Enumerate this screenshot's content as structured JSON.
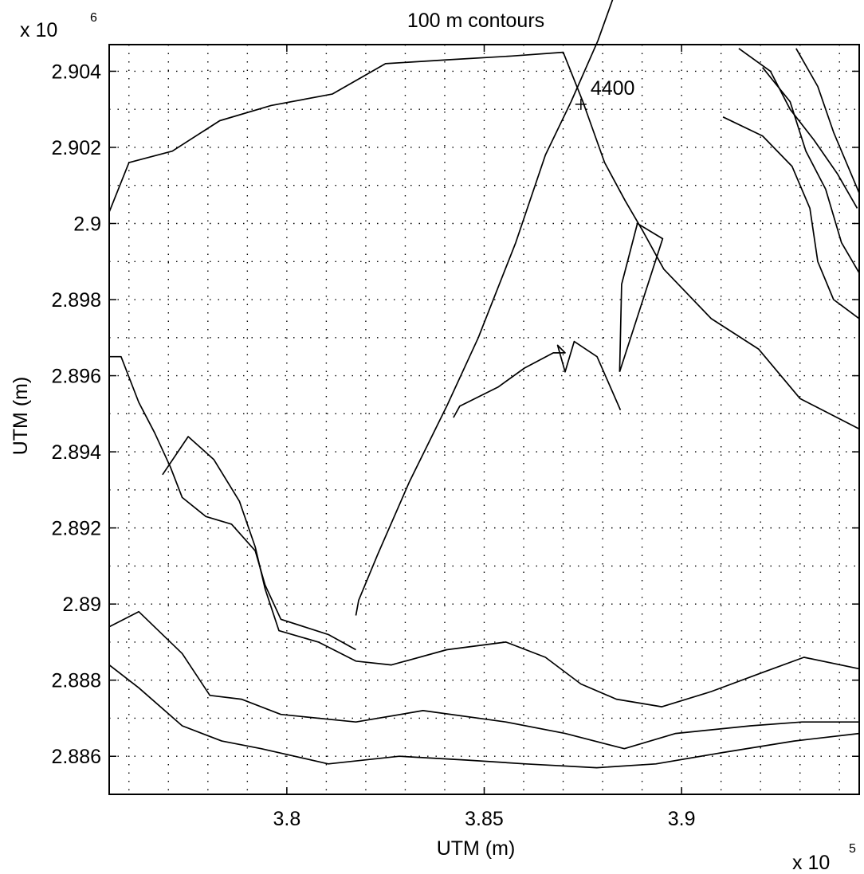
{
  "chart_data": {
    "type": "contour",
    "title": "100 m contours",
    "xlabel": "UTM (m)",
    "ylabel": "UTM (m)",
    "x_multiplier": "x 10",
    "x_exponent": "5",
    "y_multiplier": "x 10",
    "y_exponent": "6",
    "xlim": [
      3.755,
      3.945
    ],
    "ylim": [
      2.885,
      2.9047
    ],
    "x_ticks": [
      3.8,
      3.85,
      3.9
    ],
    "x_tick_labels": [
      "3.8",
      "3.85",
      "3.9"
    ],
    "y_ticks": [
      2.886,
      2.888,
      2.89,
      2.892,
      2.894,
      2.896,
      2.898,
      2.9,
      2.902,
      2.904
    ],
    "y_tick_labels": [
      "2.886",
      "2.888",
      "2.89",
      "2.892",
      "2.894",
      "2.896",
      "2.898",
      "2.9",
      "2.902",
      "2.904"
    ],
    "x_grid_step": 0.01,
    "y_grid_step": 0.001,
    "grid": true,
    "contour_annotation": {
      "text": "4400",
      "x": 3.8745,
      "y": 2.9033
    },
    "track": [
      [
        3.8175,
        2.8897
      ],
      [
        3.8182,
        2.8901
      ],
      [
        3.823,
        2.8913
      ],
      [
        3.831,
        2.8932
      ],
      [
        3.8405,
        2.8952
      ],
      [
        3.8485,
        2.897
      ],
      [
        3.858,
        2.8995
      ],
      [
        3.8655,
        2.9018
      ],
      [
        3.872,
        2.9032
      ],
      [
        3.8788,
        2.9048
      ],
      [
        3.8857,
        2.9068
      ],
      [
        3.8898,
        2.9085
      ],
      [
        3.8905,
        2.9088
      ],
      [
        3.8935,
        2.9098
      ]
    ],
    "track_loop": [
      [
        3.8843,
        2.8961
      ],
      [
        3.8848,
        2.8984
      ],
      [
        3.8888,
        2.9
      ],
      [
        3.8952,
        2.8996
      ],
      [
        3.8843,
        2.8961
      ]
    ],
    "track_spur": [
      [
        3.8422,
        2.8949
      ],
      [
        3.8438,
        2.8952
      ],
      [
        3.8535,
        2.8957
      ],
      [
        3.8602,
        2.8962
      ],
      [
        3.8675,
        2.8966
      ],
      [
        3.8705,
        2.8966
      ],
      [
        3.8686,
        2.8968
      ],
      [
        3.8705,
        2.8961
      ],
      [
        3.8728,
        2.8969
      ],
      [
        3.8786,
        2.8965
      ],
      [
        3.8845,
        2.8951
      ]
    ],
    "contours": [
      [
        [
          3.755,
          2.9003
        ],
        [
          3.76,
          2.9016
        ],
        [
          3.771,
          2.9019
        ],
        [
          3.783,
          2.9027
        ],
        [
          3.796,
          2.9031
        ],
        [
          3.8115,
          2.9034
        ],
        [
          3.825,
          2.9042
        ],
        [
          3.8405,
          2.9043
        ],
        [
          3.857,
          2.9044
        ],
        [
          3.87,
          2.9045
        ],
        [
          3.875,
          2.9032
        ],
        [
          3.8805,
          2.9016
        ],
        [
          3.8857,
          2.9006
        ],
        [
          3.8902,
          2.8998
        ],
        [
          3.8955,
          2.8988
        ],
        [
          3.9075,
          2.8975
        ],
        [
          3.9195,
          2.8967
        ],
        [
          3.93,
          2.8954
        ],
        [
          3.945,
          2.8946
        ]
      ],
      [
        [
          3.7685,
          2.8934
        ],
        [
          3.775,
          2.8944
        ],
        [
          3.7815,
          2.8938
        ],
        [
          3.788,
          2.8927
        ],
        [
          3.792,
          2.8915
        ],
        [
          3.7945,
          2.8904
        ],
        [
          3.798,
          2.8893
        ],
        [
          3.808,
          2.889
        ],
        [
          3.8175,
          2.8885
        ],
        [
          3.8265,
          2.8884
        ],
        [
          3.8405,
          2.8888
        ],
        [
          3.8555,
          2.889
        ],
        [
          3.8655,
          2.8886
        ],
        [
          3.8745,
          2.8879
        ],
        [
          3.8835,
          2.8875
        ],
        [
          3.895,
          2.8873
        ],
        [
          3.9075,
          2.8877
        ],
        [
          3.9205,
          2.8882
        ],
        [
          3.931,
          2.8886
        ],
        [
          3.945,
          2.8883
        ]
      ],
      [
        [
          3.755,
          2.8965
        ],
        [
          3.758,
          2.8965
        ],
        [
          3.7625,
          2.8953
        ],
        [
          3.7665,
          2.8945
        ],
        [
          3.7705,
          2.8936
        ],
        [
          3.7735,
          2.8928
        ],
        [
          3.7795,
          2.8923
        ],
        [
          3.786,
          2.8921
        ],
        [
          3.792,
          2.8914
        ],
        [
          3.7945,
          2.8905
        ],
        [
          3.7985,
          2.8896
        ],
        [
          3.8105,
          2.8892
        ],
        [
          3.8175,
          2.8888
        ]
      ],
      [
        [
          3.755,
          2.8894
        ],
        [
          3.7625,
          2.8898
        ],
        [
          3.7735,
          2.8887
        ],
        [
          3.7805,
          2.8876
        ],
        [
          3.7885,
          2.8875
        ],
        [
          3.7985,
          2.8871
        ],
        [
          3.8175,
          2.8869
        ],
        [
          3.8345,
          2.8872
        ],
        [
          3.8555,
          2.8869
        ],
        [
          3.8705,
          2.8866
        ],
        [
          3.8855,
          2.8862
        ],
        [
          3.8985,
          2.8866
        ],
        [
          3.9175,
          2.8868
        ],
        [
          3.9305,
          2.8869
        ],
        [
          3.945,
          2.8869
        ]
      ],
      [
        [
          3.755,
          2.8884
        ],
        [
          3.7625,
          2.8878
        ],
        [
          3.7735,
          2.8868
        ],
        [
          3.7835,
          2.8864
        ],
        [
          3.7935,
          2.8862
        ],
        [
          3.8105,
          2.8858
        ],
        [
          3.8285,
          2.886
        ],
        [
          3.8455,
          2.8859
        ],
        [
          3.8605,
          2.8858
        ],
        [
          3.8785,
          2.8857
        ],
        [
          3.8935,
          2.8858
        ],
        [
          3.9105,
          2.8861
        ],
        [
          3.9285,
          2.8864
        ],
        [
          3.945,
          2.8866
        ]
      ],
      [
        [
          3.9105,
          2.9028
        ],
        [
          3.9205,
          2.9023
        ],
        [
          3.928,
          2.9015
        ],
        [
          3.9325,
          2.9004
        ],
        [
          3.9345,
          2.899
        ],
        [
          3.9385,
          2.898
        ],
        [
          3.945,
          2.8975
        ]
      ],
      [
        [
          3.9205,
          2.9041
        ],
        [
          3.9275,
          2.9032
        ],
        [
          3.9315,
          2.9019
        ],
        [
          3.9365,
          2.9009
        ],
        [
          3.9405,
          2.8995
        ],
        [
          3.945,
          2.8987
        ]
      ],
      [
        [
          3.929,
          2.9046
        ],
        [
          3.9345,
          2.9036
        ],
        [
          3.9385,
          2.9024
        ],
        [
          3.945,
          2.9008
        ]
      ],
      [
        [
          3.9145,
          2.9046
        ],
        [
          3.9225,
          2.904
        ],
        [
          3.9275,
          2.903
        ],
        [
          3.9335,
          2.9022
        ],
        [
          3.9395,
          2.9013
        ],
        [
          3.9445,
          2.9004
        ]
      ]
    ]
  }
}
